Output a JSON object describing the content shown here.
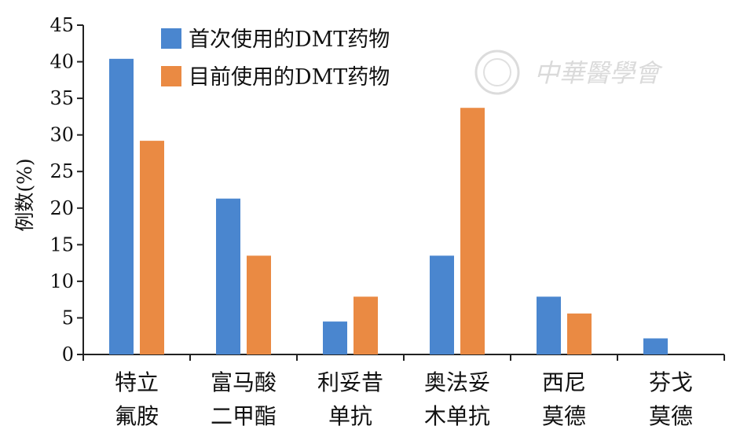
{
  "chart_data": {
    "type": "bar",
    "categories": [
      [
        "特立",
        "氟胺"
      ],
      [
        "富马酸",
        "二甲酯"
      ],
      [
        "利妥昔",
        "单抗"
      ],
      [
        "奥法妥",
        "木单抗"
      ],
      [
        "西尼",
        "莫德"
      ],
      [
        "芬戈",
        "莫德"
      ]
    ],
    "series": [
      {
        "name": "首次使用的DMT药物",
        "color": "#4a86cf",
        "values": [
          40.4,
          21.3,
          4.5,
          13.5,
          7.9,
          2.2
        ]
      },
      {
        "name": "目前使用的DMT药物",
        "color": "#ea8a43",
        "values": [
          29.2,
          13.5,
          7.9,
          33.7,
          5.6,
          null
        ]
      }
    ],
    "ylabel": "例数(%)",
    "ylim": [
      0,
      45
    ],
    "yticks": [
      0,
      5,
      10,
      15,
      20,
      25,
      30,
      35,
      40,
      45
    ],
    "grid": false,
    "legend_position": "top-left"
  },
  "watermark": {
    "text": "中華醫學會"
  }
}
